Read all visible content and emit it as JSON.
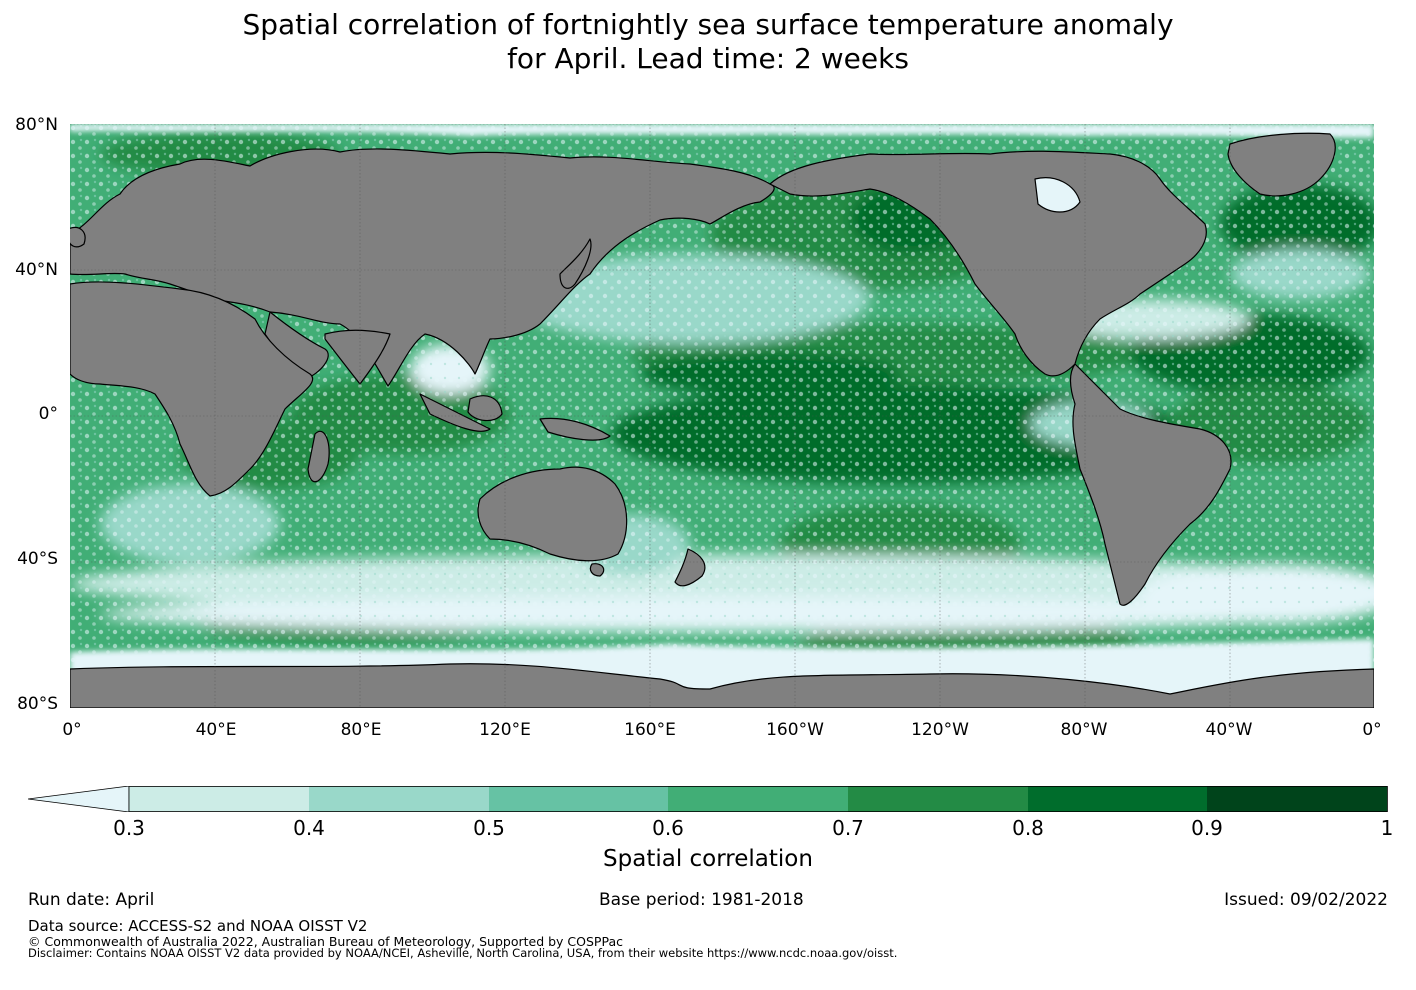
{
  "title": {
    "line1": "Spatial correlation of fortnightly sea surface temperature anomaly",
    "line2": "for April. Lead time: 2 weeks"
  },
  "map": {
    "land_color": "#808080",
    "ocean_low_color": "#e5f5f9",
    "lat_labels": [
      "80°N",
      "40°N",
      "0°",
      "40°S",
      "80°S"
    ],
    "lon_labels": [
      "0°",
      "40°E",
      "80°E",
      "120°E",
      "160°E",
      "160°W",
      "120°W",
      "80°W",
      "40°W",
      "0°"
    ]
  },
  "colorbar": {
    "ticks": [
      "0.3",
      "0.4",
      "0.5",
      "0.6",
      "0.7",
      "0.8",
      "0.9",
      "1"
    ],
    "colors": [
      "#e5f5f9",
      "#ccece6",
      "#99d8c9",
      "#66c2a4",
      "#41ae76",
      "#238b45",
      "#006d2c",
      "#00441b"
    ],
    "label": "Spatial correlation"
  },
  "footer": {
    "run_date": "Run date: April",
    "base_period": "Base period: 1981-2018",
    "issued": "Issued: 09/02/2022",
    "data_source": "Data source: ACCESS-S2 and NOAA OISST V2",
    "copyright": "© Commonwealth of Australia 2022, Australian Bureau of Meteorology, Supported by COSPPac",
    "disclaimer": "Disclaimer: Contains NOAA OISST V2 data provided by NOAA/NCEI, Asheville, North Carolina, USA, from their website https://www.ncdc.noaa.gov/oisst."
  }
}
